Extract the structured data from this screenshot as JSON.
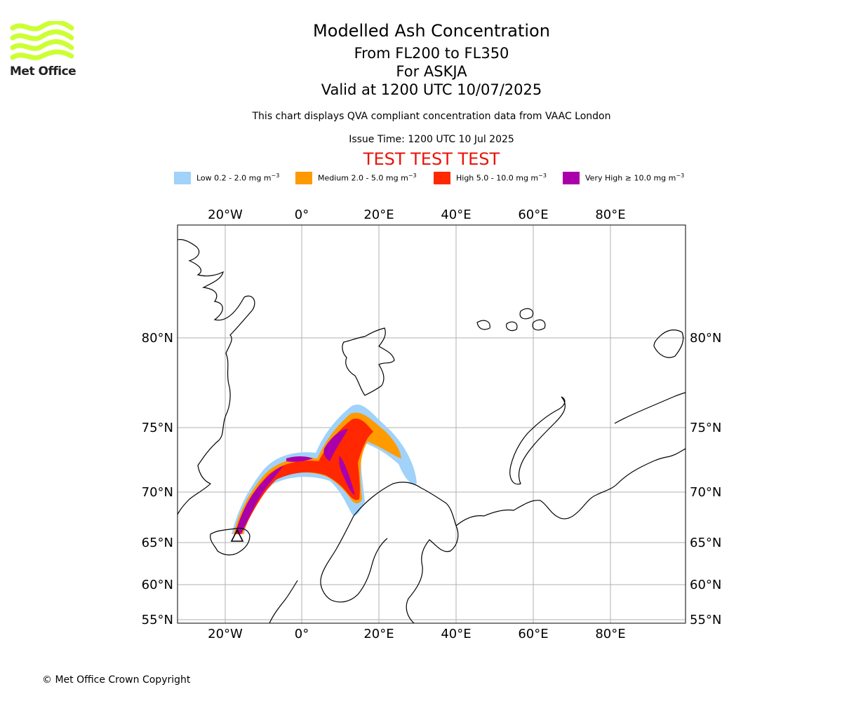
{
  "logo": {
    "text": "Met Office",
    "color": "#ccff33"
  },
  "header": {
    "title": "Modelled Ash Concentration",
    "levels": "From FL200 to FL350",
    "volcano": "For ASKJA",
    "valid": "Valid at 1200 UTC 10/07/2025",
    "subtitle": "This chart displays QVA compliant concentration data from VAAC London",
    "issue_time": "Issue Time: 1200 UTC 10 Jul 2025",
    "test_banner": "TEST TEST TEST"
  },
  "legend": [
    {
      "label": "Low 0.2 - 2.0 mg m",
      "exp": "−3",
      "color": "#a0d2fa"
    },
    {
      "label": "Medium 2.0 - 5.0 mg m",
      "exp": "−3",
      "color": "#ff9a00"
    },
    {
      "label": "High 5.0 - 10.0 mg m",
      "exp": "−3",
      "color": "#ff2800"
    },
    {
      "label": "Very High ≥ 10.0 mg m",
      "exp": "−3",
      "color": "#aa00aa"
    }
  ],
  "map": {
    "lon_ticks": [
      "20°W",
      "0°",
      "20°E",
      "40°E",
      "60°E",
      "80°E"
    ],
    "lat_ticks": [
      "80°N",
      "75°N",
      "70°N",
      "65°N",
      "60°N",
      "55°N"
    ],
    "gridline_color": "#b0b0b0"
  },
  "footer": {
    "copyright": "© Met Office Crown Copyright"
  }
}
